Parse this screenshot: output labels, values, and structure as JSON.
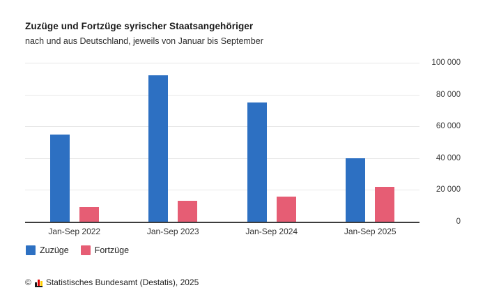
{
  "chart_data": {
    "type": "bar",
    "title": "Zuzüge und Fortzüge syrischer Staatsangehöriger",
    "subtitle": "nach und aus Deutschland, jeweils von Januar bis September",
    "categories": [
      "Jan-Sep 2022",
      "Jan-Sep 2023",
      "Jan-Sep 2024",
      "Jan-Sep 2025"
    ],
    "series": [
      {
        "name": "Zuzüge",
        "color": "#2d70c2",
        "values": [
          55000,
          92000,
          75000,
          40000
        ]
      },
      {
        "name": "Fortzüge",
        "color": "#e65d74",
        "values": [
          9000,
          13000,
          16000,
          22000
        ]
      }
    ],
    "ylim": [
      0,
      100000
    ],
    "yticks": [
      0,
      20000,
      40000,
      60000,
      80000,
      100000
    ],
    "ytick_labels": [
      "0",
      "20 000",
      "40 000",
      "60 000",
      "80 000",
      "100 000"
    ],
    "yaxis_side": "right",
    "grid": true,
    "legend_position": "bottom-left"
  },
  "footer": {
    "copyright_symbol": "©",
    "source_text": "Statistisches Bundesamt (Destatis), 2025",
    "logo_icon": "destatis-bar-chart-icon",
    "logo_colors": [
      "#1a1a1a",
      "#dd0000",
      "#ffce00"
    ]
  }
}
